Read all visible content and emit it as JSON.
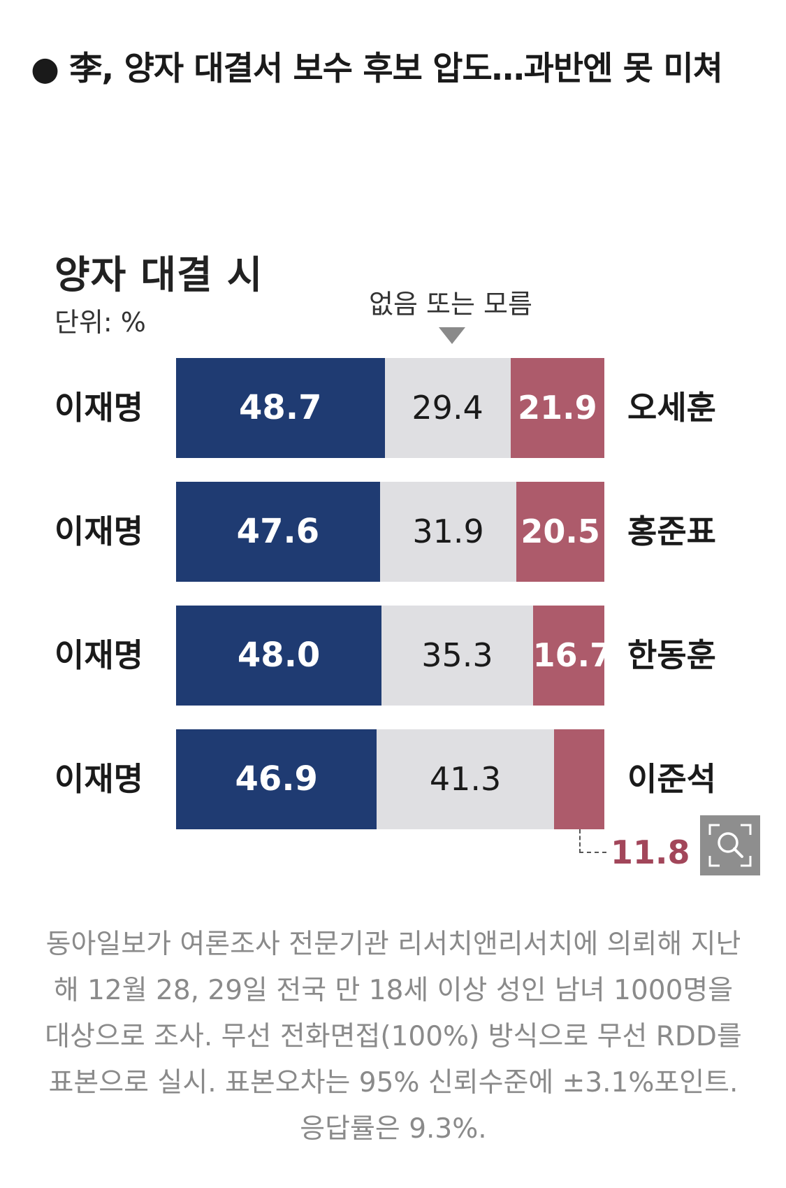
{
  "headline": "● 李, 양자 대결서 보수 후보 압도…과반엔 못 미쳐",
  "zoom_icon": "zoom-magnifier-icon",
  "caption": "동아일보가 여론조사 전문기관 리서치앤리서치에 의뢰해 지난해 12월 28, 29일 전국 만 18세 이상 성인 남녀 1000명을 대상으로 조사. 무선 전화면접(100%) 방식으로 무선 RDD를 표본으로 실시. 표본오차는 95% 신뢰수준에 ±3.1%포인트. 응답률은 9.3%.",
  "colors": {
    "candidate_a": "#1f3b72",
    "undecided": "#dfdfe2",
    "candidate_b": "#ad5b6b"
  },
  "chart_data": {
    "type": "bar",
    "stacked": true,
    "orientation": "horizontal",
    "title": "양자 대결 시",
    "unit": "단위: %",
    "undecided_label": "없음 또는 모름",
    "rows": [
      {
        "left": "이재명",
        "right": "오세훈",
        "values": [
          48.7,
          29.4,
          21.9
        ],
        "labels": [
          "48.7",
          "29.4",
          "21.9"
        ]
      },
      {
        "left": "이재명",
        "right": "홍준표",
        "values": [
          47.6,
          31.9,
          20.5
        ],
        "labels": [
          "47.6",
          "31.9",
          "20.5"
        ]
      },
      {
        "left": "이재명",
        "right": "한동훈",
        "values": [
          48.0,
          35.3,
          16.7
        ],
        "labels": [
          "48.0",
          "35.3",
          "16.7"
        ]
      },
      {
        "left": "이재명",
        "right": "이준석",
        "values": [
          46.9,
          41.3,
          11.8
        ],
        "labels": [
          "46.9",
          "41.3",
          ""
        ]
      }
    ],
    "outside_label": "11.8"
  }
}
